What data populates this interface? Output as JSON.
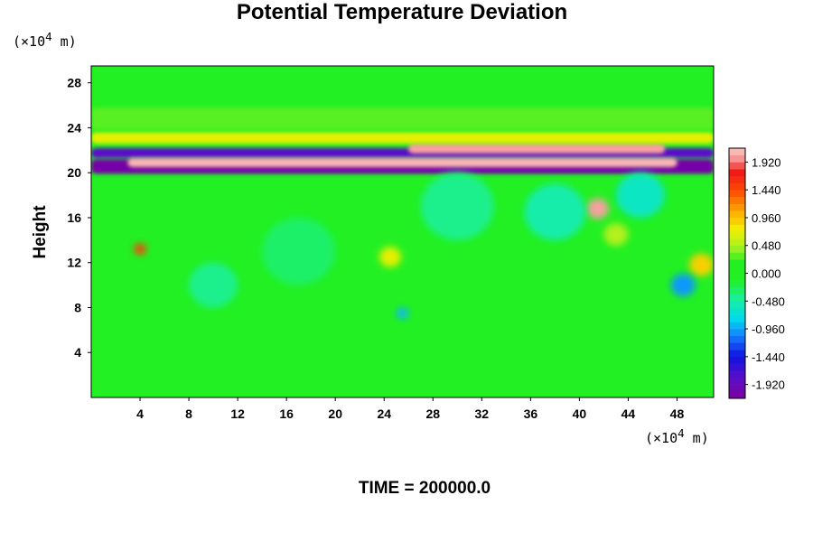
{
  "chart_data": {
    "type": "heatmap",
    "title": "Potential Temperature Deviation",
    "ylabel": "Height",
    "y_unit_main": "(×10",
    "y_unit_exp": "4",
    "y_unit_end": " m)",
    "x_unit_main": "(×10",
    "x_unit_exp": "4",
    "x_unit_end": " m)",
    "xlim": [
      0,
      51
    ],
    "ylim": [
      0,
      29.5
    ],
    "x_ticks": [
      4,
      8,
      12,
      16,
      20,
      24,
      28,
      32,
      36,
      40,
      44,
      48
    ],
    "y_ticks": [
      4,
      8,
      12,
      16,
      20,
      24,
      28
    ],
    "colorbar": {
      "range": [
        -2.16,
        2.16
      ],
      "labels": [
        "1.920",
        "1.440",
        "0.960",
        "0.480",
        "0.000",
        "-0.480",
        "-0.960",
        "-1.440",
        "-1.920"
      ],
      "label_values": [
        1.92,
        1.44,
        0.96,
        0.48,
        0.0,
        -0.48,
        -0.96,
        -1.44,
        -1.92
      ]
    },
    "background_color": "#22f022",
    "features": [
      {
        "type": "band",
        "x": [
          0,
          51
        ],
        "y": [
          19.9,
          21.2
        ],
        "value": -2.1
      },
      {
        "type": "band",
        "x": [
          0,
          51
        ],
        "y": [
          21.3,
          22.2
        ],
        "value": -1.8
      },
      {
        "type": "band",
        "x": [
          3,
          48
        ],
        "y": [
          20.5,
          21.3
        ],
        "value": 2.1
      },
      {
        "type": "band",
        "x": [
          26,
          47
        ],
        "y": [
          21.7,
          22.6
        ],
        "value": 2.0
      },
      {
        "type": "band",
        "x": [
          0,
          51
        ],
        "y": [
          22.6,
          23.6
        ],
        "value": 0.7
      },
      {
        "type": "band",
        "x": [
          0,
          51
        ],
        "y": [
          23.8,
          25.8
        ],
        "value": 0.3
      },
      {
        "type": "blob",
        "x": 41.5,
        "y": 16.8,
        "r": 0.9,
        "value": 2.0
      },
      {
        "type": "blob",
        "x": 4.0,
        "y": 13.2,
        "r": 0.5,
        "value": 1.5
      },
      {
        "type": "blob",
        "x": 24.5,
        "y": 12.5,
        "r": 0.9,
        "value": 0.7
      },
      {
        "type": "blob",
        "x": 50.0,
        "y": 11.8,
        "r": 1.0,
        "value": 0.9
      },
      {
        "type": "blob",
        "x": 43.0,
        "y": 14.5,
        "r": 1.0,
        "value": 0.5
      },
      {
        "type": "blob",
        "x": 25.5,
        "y": 7.5,
        "r": 0.5,
        "value": -0.9
      },
      {
        "type": "blob",
        "x": 48.5,
        "y": 10.0,
        "r": 1.0,
        "value": -1.0
      },
      {
        "type": "blob",
        "x": 10.0,
        "y": 10.0,
        "r": 2.0,
        "value": -0.4
      },
      {
        "type": "blob",
        "x": 30.0,
        "y": 17.0,
        "r": 3.0,
        "value": -0.4
      },
      {
        "type": "blob",
        "x": 38.0,
        "y": 16.5,
        "r": 2.5,
        "value": -0.5
      },
      {
        "type": "blob",
        "x": 45.0,
        "y": 18.0,
        "r": 2.0,
        "value": -0.6
      },
      {
        "type": "blob",
        "x": 17.0,
        "y": 13.0,
        "r": 3.0,
        "value": -0.3
      }
    ]
  },
  "footer": {
    "time_label": "TIME = 200000.0"
  }
}
